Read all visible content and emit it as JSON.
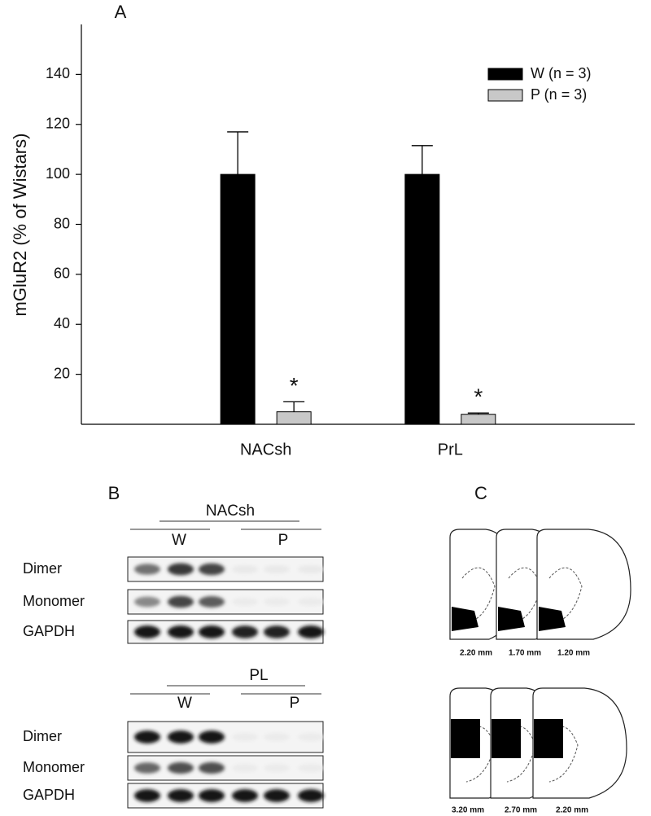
{
  "chart_data": {
    "type": "bar",
    "panel_label": "A",
    "ylabel": "mGluR2  (% of Wistars)",
    "categories": [
      "NACsh",
      "PrL"
    ],
    "series": [
      {
        "name": "W (n = 3)",
        "color": "#000000",
        "values": [
          100,
          100
        ],
        "errors": [
          17,
          11.5
        ]
      },
      {
        "name": "P (n = 3)",
        "color": "#c8c8c8",
        "values": [
          5,
          4
        ],
        "errors": [
          4,
          0.5
        ]
      }
    ],
    "annotations": [
      {
        "text": "*",
        "series": 1,
        "category": 0
      },
      {
        "text": "*",
        "series": 1,
        "category": 1
      }
    ],
    "ylim": [
      0,
      160
    ],
    "yticks": [
      20,
      40,
      60,
      80,
      100,
      120,
      140
    ],
    "legend": "upper-right",
    "grid": false
  },
  "panel_b": {
    "label": "B",
    "blots": [
      {
        "region": "NACsh",
        "groups": [
          "W",
          "P"
        ],
        "rows": [
          "Dimer",
          "Monomer",
          "GAPDH"
        ]
      },
      {
        "region": "PL",
        "groups": [
          "W",
          "P"
        ],
        "rows": [
          "Dimer",
          "Monomer",
          "GAPDH"
        ]
      }
    ]
  },
  "panel_c": {
    "label": "C",
    "sections": [
      [
        "2.20 mm",
        "1.70 mm",
        "1.20 mm"
      ],
      [
        "3.20 mm",
        "2.70 mm",
        "2.20 mm"
      ]
    ]
  }
}
